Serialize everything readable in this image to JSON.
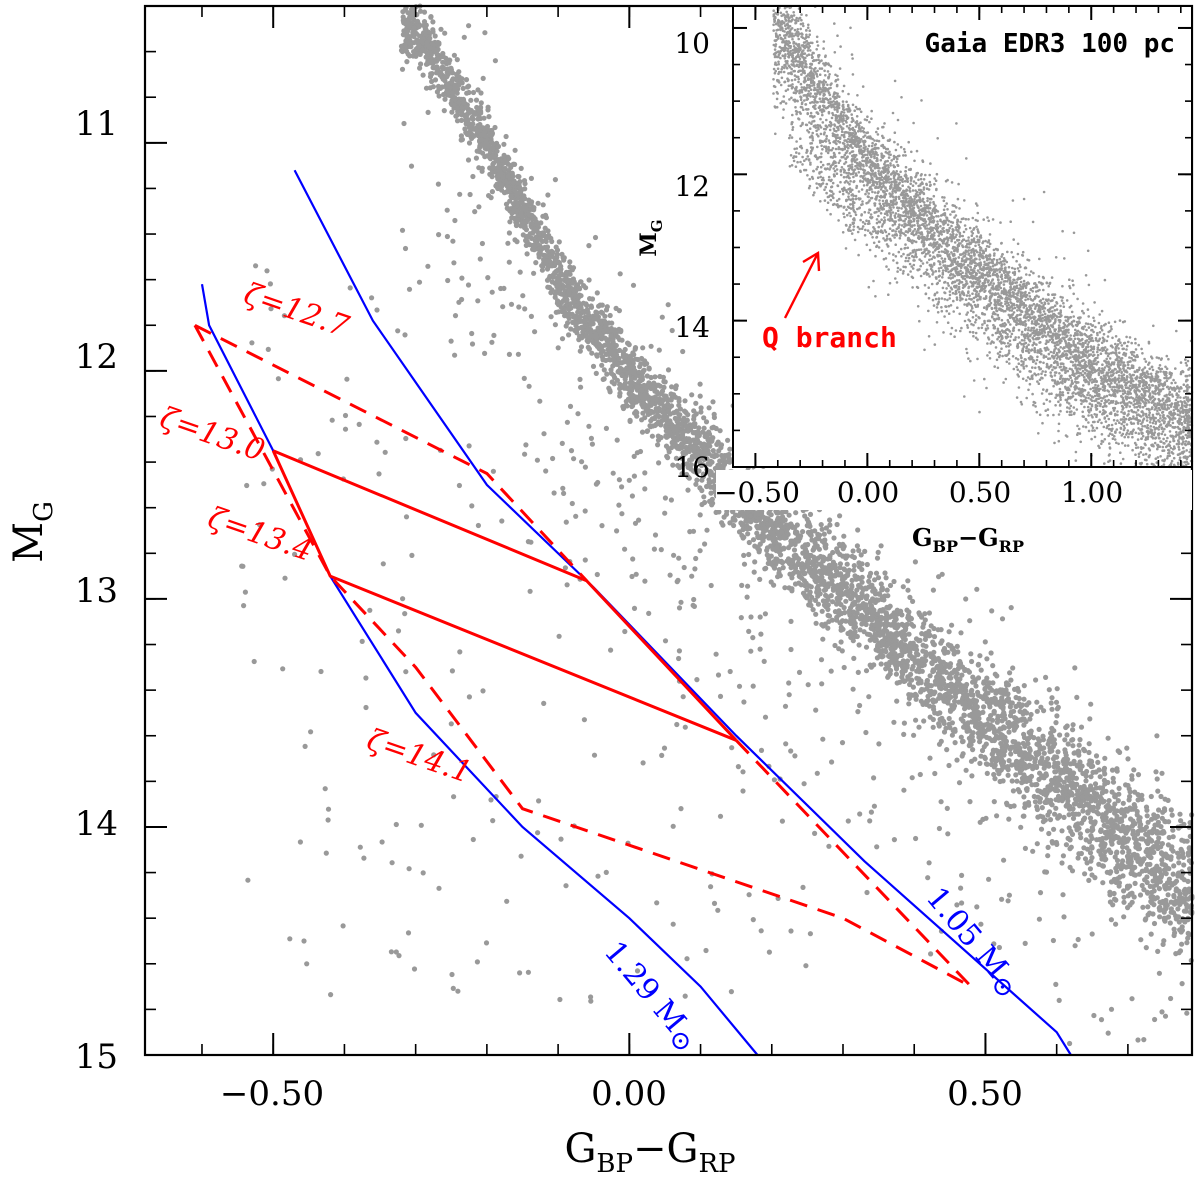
{
  "colors": {
    "points": "#999999",
    "tracks": "#0000ff",
    "isochrones": "#ff0000",
    "axes": "#000000"
  },
  "chart_data": [
    {
      "id": "main",
      "type": "scatter",
      "title": "",
      "xlabel": "G_BP − G_RP",
      "ylabel": "M_G",
      "xlim": [
        -0.68,
        0.79
      ],
      "ylim": [
        15.0,
        10.4
      ],
      "y_inverted": true,
      "xticks": [
        -0.5,
        0.0,
        0.5
      ],
      "xtick_labels": [
        "−0.50",
        "0.00",
        "0.50"
      ],
      "yticks": [
        11,
        12,
        13,
        14,
        15
      ],
      "ytick_labels": [
        "11",
        "12",
        "13",
        "14",
        "15"
      ],
      "scatter_band": {
        "description_only_for_render": false,
        "spine": [
          [
            -0.3,
            10.5
          ],
          [
            -0.2,
            11.0
          ],
          [
            -0.08,
            11.7
          ],
          [
            0.05,
            12.2
          ],
          [
            0.2,
            12.7
          ],
          [
            0.38,
            13.2
          ],
          [
            0.55,
            13.65
          ],
          [
            0.7,
            14.05
          ],
          [
            0.79,
            14.3
          ]
        ],
        "q_branch_spine": [
          [
            -0.12,
            12.4
          ],
          [
            0.0,
            12.7
          ]
        ]
      },
      "series": [
        {
          "name": "1.29 M⊙",
          "kind": "cooling-track",
          "color": "#0000ff",
          "style": "solid",
          "points": [
            [
              -0.6,
              11.62
            ],
            [
              -0.59,
              11.8
            ],
            [
              -0.5,
              12.35
            ],
            [
              -0.42,
              12.9
            ],
            [
              -0.3,
              13.5
            ],
            [
              -0.15,
              14.0
            ],
            [
              0.0,
              14.4
            ],
            [
              0.1,
              14.7
            ],
            [
              0.18,
              15.0
            ]
          ]
        },
        {
          "name": "1.05 M⊙",
          "kind": "cooling-track",
          "color": "#0000ff",
          "style": "solid",
          "points": [
            [
              -0.47,
              11.12
            ],
            [
              -0.36,
              11.78
            ],
            [
              -0.2,
              12.5
            ],
            [
              -0.05,
              12.95
            ],
            [
              0.15,
              13.6
            ],
            [
              0.33,
              14.15
            ],
            [
              0.6,
              14.9
            ],
            [
              0.62,
              15.0
            ]
          ]
        },
        {
          "name": "ζ=12.7",
          "kind": "isochrone",
          "color": "#ff0000",
          "style": "dashed",
          "points": [
            [
              -0.61,
              11.8
            ],
            [
              -0.2,
              12.45
            ],
            [
              -0.06,
              12.92
            ]
          ]
        },
        {
          "name": "ζ=13.0",
          "kind": "isochrone",
          "color": "#ff0000",
          "style": "solid",
          "points": [
            [
              -0.5,
              12.35
            ],
            [
              -0.06,
              12.92
            ],
            [
              0.15,
              13.62
            ]
          ]
        },
        {
          "name": "ζ=13.4",
          "kind": "isochrone",
          "color": "#ff0000",
          "style": "solid",
          "points": [
            [
              -0.5,
              12.35
            ],
            [
              -0.42,
              12.9
            ],
            [
              0.15,
              13.62
            ]
          ]
        },
        {
          "name": "ζ=14.1",
          "kind": "isochrone",
          "color": "#ff0000",
          "style": "dashed",
          "points": [
            [
              -0.61,
              11.8
            ],
            [
              -0.42,
              12.9
            ],
            [
              -0.3,
              13.3
            ],
            [
              -0.15,
              13.92
            ],
            [
              0.3,
              14.4
            ],
            [
              0.48,
              14.7
            ]
          ]
        },
        {
          "name": "",
          "kind": "isochrone-link",
          "color": "#ff0000",
          "style": "dashed",
          "points": [
            [
              0.15,
              13.62
            ],
            [
              0.48,
              14.7
            ]
          ]
        }
      ],
      "annotations": [
        {
          "text": "ζ=12.7",
          "color": "#ff0000"
        },
        {
          "text": "ζ=13.0",
          "color": "#ff0000"
        },
        {
          "text": "ζ=13.4",
          "color": "#ff0000"
        },
        {
          "text": "ζ=14.1",
          "color": "#ff0000"
        },
        {
          "text": "1.29 M⊙",
          "color": "#0000ff"
        },
        {
          "text": "1.05 M⊙",
          "color": "#0000ff"
        }
      ]
    },
    {
      "id": "inset",
      "type": "scatter",
      "title": "Gaia EDR3 100 pc",
      "xlabel": "G_BP − G_RP",
      "ylabel": "M_G",
      "xlim": [
        -0.6,
        1.45
      ],
      "ylim": [
        16.0,
        9.7
      ],
      "y_inverted": true,
      "xticks": [
        -0.5,
        0.0,
        0.5,
        1.0
      ],
      "xtick_labels": [
        "−0.50",
        "0.00",
        "0.50",
        "1.00"
      ],
      "yticks": [
        10,
        12,
        14,
        16
      ],
      "ytick_labels": [
        "10",
        "12",
        "14",
        "16"
      ],
      "annotations": [
        {
          "text": "Q branch",
          "color": "#ff0000",
          "points_to": [
            -0.2,
            12.7
          ]
        }
      ]
    }
  ],
  "labels": {
    "main_xlabel_main": "G",
    "main_xlabel_sub1": "BP",
    "main_xlabel_minus": "−",
    "main_xlabel_sub2": "RP",
    "main_ylabel_main": "M",
    "main_ylabel_sub": "G",
    "inset_ylabel_main": "M",
    "inset_ylabel_sub": "G",
    "inset_xlabel_main": "G",
    "inset_xlabel_sub1": "BP",
    "inset_xlabel_minus": "−",
    "inset_xlabel_sub2": "RP",
    "inset_title": "Gaia EDR3 100 pc",
    "q_branch": "Q branch",
    "zeta_127": "ζ=12.7",
    "zeta_130": "ζ=13.0",
    "zeta_134": "ζ=13.4",
    "zeta_141": "ζ=14.1",
    "mass_129": "1.29 M",
    "mass_105": "1.05 M",
    "sun_symbol": "⊙"
  }
}
